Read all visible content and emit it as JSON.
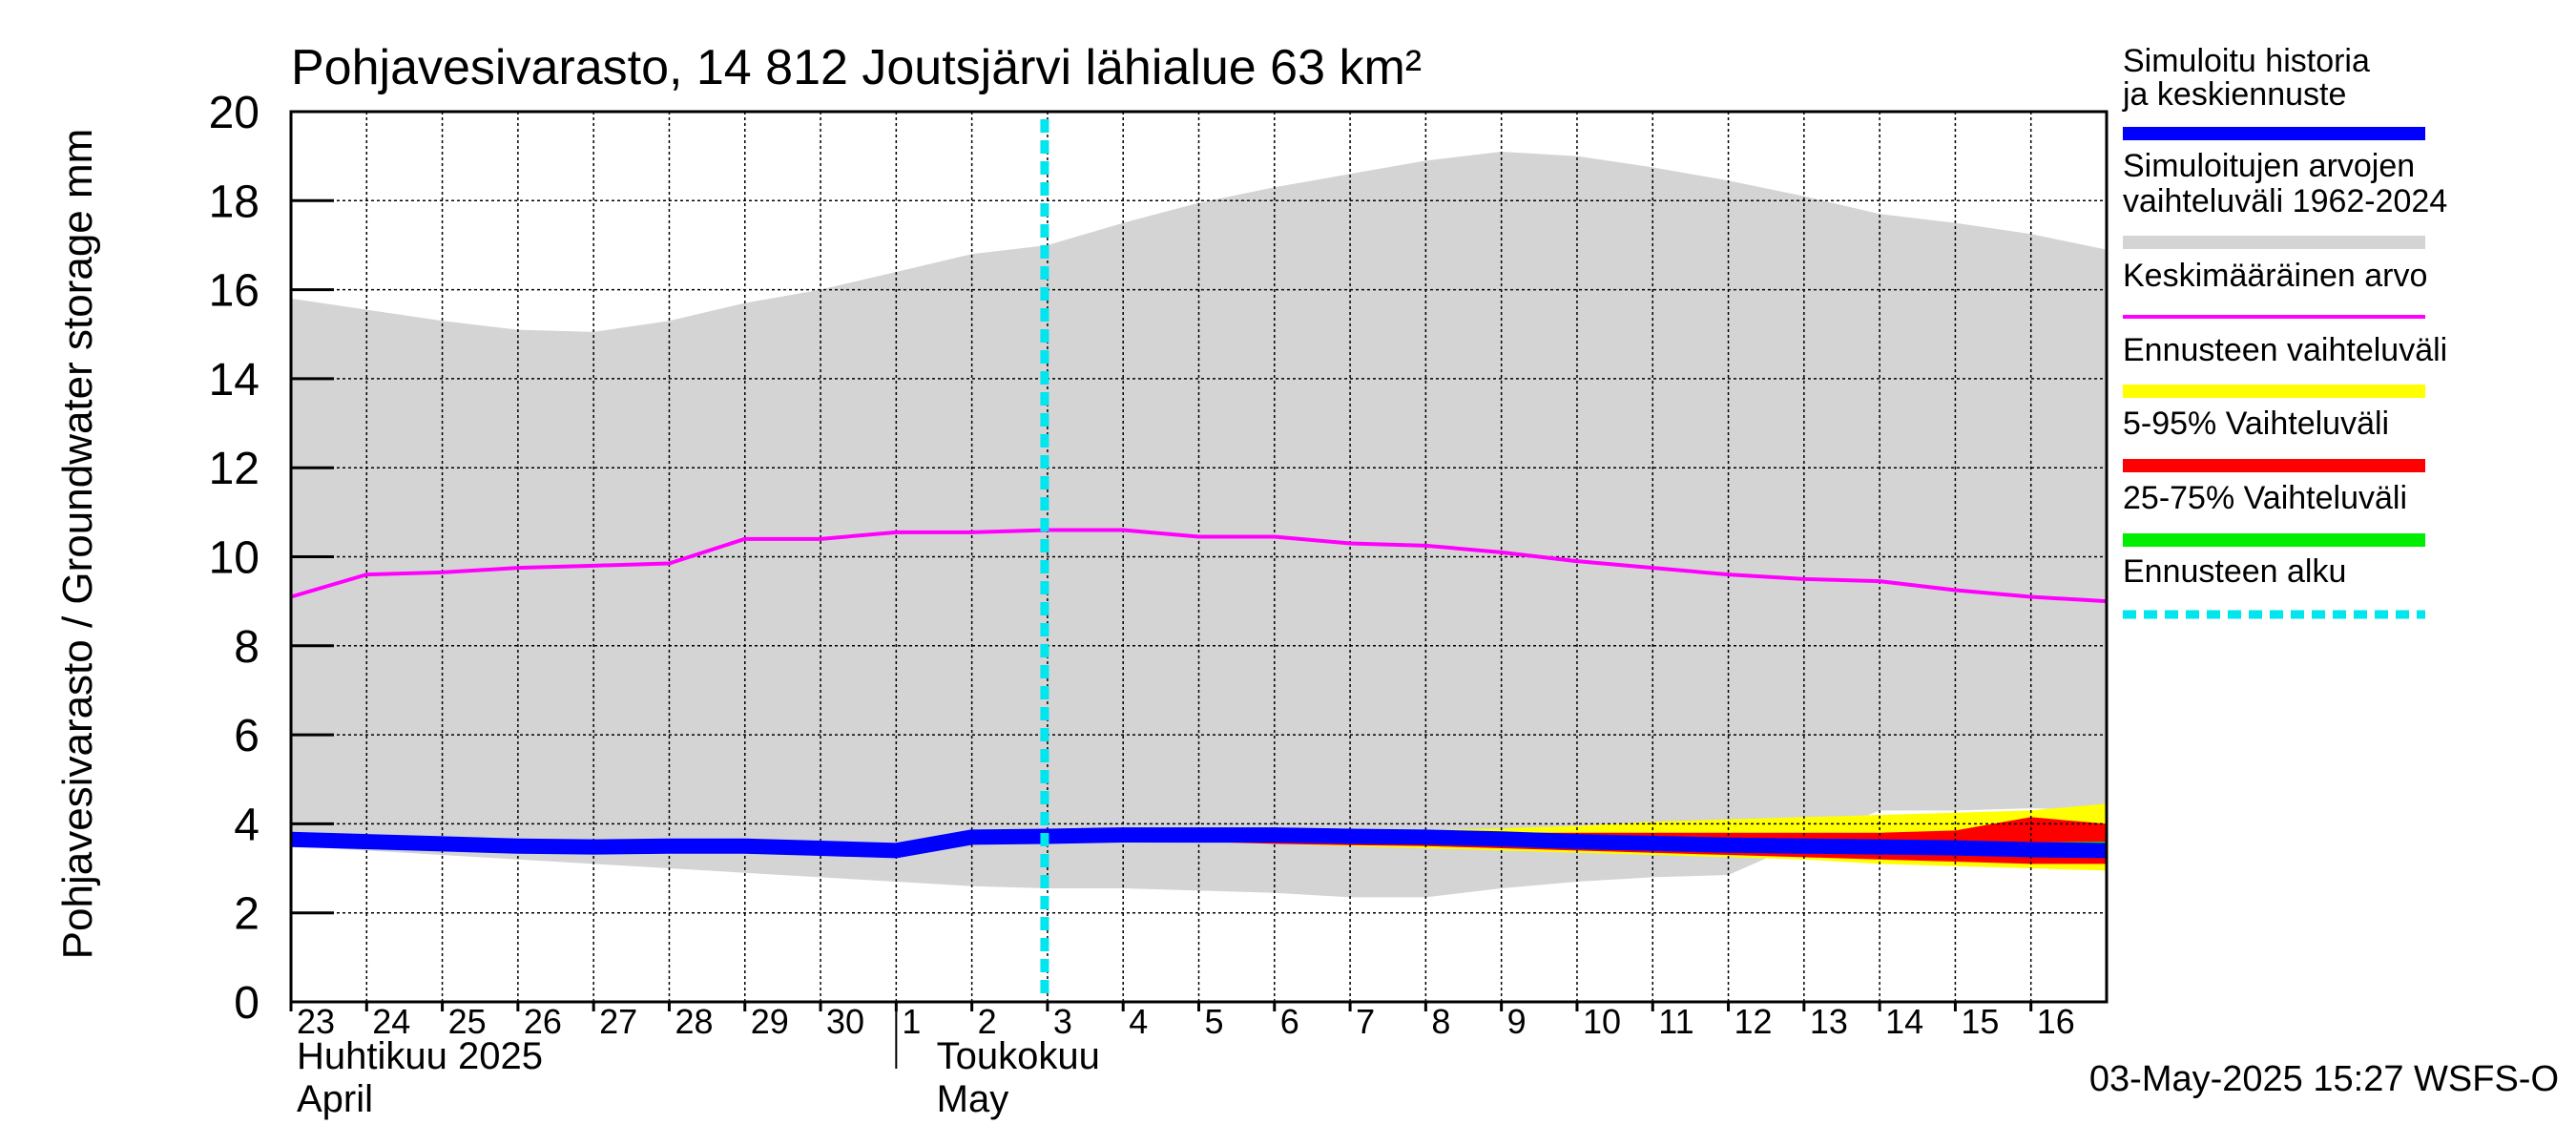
{
  "chart_data": {
    "type": "area",
    "title": "Pohjavesivarasto, 14 812 Joutsjärvi lähialue 63 km²",
    "ylabel": "Pohjavesivarasto / Groundwater storage   mm",
    "ylim": [
      0,
      20
    ],
    "yticks": [
      0,
      2,
      4,
      6,
      8,
      10,
      12,
      14,
      16,
      18,
      20
    ],
    "xlim": [
      0,
      24
    ],
    "grid": true,
    "day_labels": [
      {
        "label": "23",
        "day": 0
      },
      {
        "label": "24",
        "day": 1
      },
      {
        "label": "25",
        "day": 2
      },
      {
        "label": "26",
        "day": 3
      },
      {
        "label": "27",
        "day": 4
      },
      {
        "label": "28",
        "day": 5
      },
      {
        "label": "29",
        "day": 6
      },
      {
        "label": "30",
        "day": 7
      },
      {
        "label": "1",
        "day": 8
      },
      {
        "label": "2",
        "day": 9
      },
      {
        "label": "3",
        "day": 10
      },
      {
        "label": "4",
        "day": 11
      },
      {
        "label": "5",
        "day": 12
      },
      {
        "label": "6",
        "day": 13
      },
      {
        "label": "7",
        "day": 14
      },
      {
        "label": "8",
        "day": 15
      },
      {
        "label": "9",
        "day": 16
      },
      {
        "label": "10",
        "day": 17
      },
      {
        "label": "11",
        "day": 18
      },
      {
        "label": "12",
        "day": 19
      },
      {
        "label": "13",
        "day": 20
      },
      {
        "label": "14",
        "day": 21
      },
      {
        "label": "15",
        "day": 22
      },
      {
        "label": "16",
        "day": 23
      }
    ],
    "month_labels": [
      {
        "fi": "Huhtikuu  2025",
        "en": "April",
        "day": 0
      },
      {
        "fi": "Toukokuu",
        "en": "May",
        "day": 9
      }
    ],
    "month_divider_day": 8,
    "forecast_start_day": 10,
    "series": [
      {
        "name": "Simuloitujen arvojen vaihteluväli 1962-2024",
        "kind": "band",
        "color": "#d4d4d4",
        "x": [
          0,
          1,
          2,
          3,
          4,
          5,
          6,
          7,
          8,
          9,
          10,
          11,
          12,
          13,
          14,
          15,
          16,
          17,
          18,
          19,
          20,
          21,
          22,
          23,
          24
        ],
        "upper": [
          15.8,
          15.55,
          15.3,
          15.1,
          15.05,
          15.3,
          15.7,
          16.0,
          16.4,
          16.8,
          17.0,
          17.5,
          17.95,
          18.3,
          18.6,
          18.9,
          19.1,
          19.0,
          18.75,
          18.45,
          18.1,
          17.7,
          17.5,
          17.25,
          16.9
        ],
        "lower": [
          3.5,
          3.4,
          3.3,
          3.2,
          3.1,
          3.0,
          2.9,
          2.8,
          2.7,
          2.6,
          2.55,
          2.55,
          2.5,
          2.45,
          2.35,
          2.35,
          2.55,
          2.7,
          2.8,
          2.85,
          3.6,
          4.3,
          4.3,
          4.35,
          4.3
        ]
      },
      {
        "name": "Ennusteen vaihteluväli",
        "kind": "band",
        "color": "#ffff00",
        "x": [
          10,
          11,
          12,
          13,
          14,
          15,
          16,
          17,
          18,
          19,
          20,
          21,
          22,
          23,
          24
        ],
        "upper": [
          3.75,
          3.8,
          3.8,
          3.85,
          3.85,
          3.85,
          3.9,
          3.95,
          4.05,
          4.1,
          4.15,
          4.2,
          4.25,
          4.3,
          4.45
        ],
        "lower": [
          3.7,
          3.65,
          3.6,
          3.55,
          3.5,
          3.45,
          3.4,
          3.35,
          3.3,
          3.25,
          3.2,
          3.1,
          3.05,
          3.0,
          2.95
        ]
      },
      {
        "name": "5-95% Vaihteluväli",
        "kind": "band",
        "color": "#ff0000",
        "x": [
          10,
          11,
          12,
          13,
          14,
          15,
          16,
          17,
          18,
          19,
          20,
          21,
          22,
          23,
          24
        ],
        "upper": [
          3.75,
          3.78,
          3.78,
          3.78,
          3.78,
          3.78,
          3.8,
          3.8,
          3.8,
          3.8,
          3.8,
          3.8,
          3.85,
          4.15,
          4.0
        ],
        "lower": [
          3.7,
          3.65,
          3.6,
          3.55,
          3.52,
          3.5,
          3.45,
          3.4,
          3.35,
          3.3,
          3.25,
          3.2,
          3.15,
          3.1,
          3.1
        ]
      },
      {
        "name": "25-75% Vaihteluväli",
        "kind": "band",
        "color": "#00ee00",
        "x": [
          10,
          11,
          12,
          13,
          14,
          15,
          16,
          17,
          18,
          19,
          20,
          21,
          22,
          23,
          24
        ],
        "upper": [
          3.74,
          3.74,
          3.74,
          3.74,
          3.72,
          3.7,
          3.68,
          3.66,
          3.64,
          3.62,
          3.6,
          3.6,
          3.58,
          3.58,
          3.6
        ],
        "lower": [
          3.7,
          3.68,
          3.66,
          3.64,
          3.62,
          3.6,
          3.56,
          3.52,
          3.48,
          3.44,
          3.4,
          3.38,
          3.36,
          3.34,
          3.3
        ]
      },
      {
        "name": "Keskimääräinen arvo",
        "kind": "line",
        "color": "#ff00ff",
        "x": [
          0,
          1,
          2,
          3,
          4,
          5,
          6,
          7,
          8,
          9,
          10,
          11,
          12,
          13,
          14,
          15,
          16,
          17,
          18,
          19,
          20,
          21,
          22,
          23,
          24
        ],
        "values": [
          9.1,
          9.6,
          9.65,
          9.75,
          9.8,
          9.85,
          10.4,
          10.4,
          10.55,
          10.55,
          10.6,
          10.6,
          10.45,
          10.45,
          10.3,
          10.25,
          10.1,
          9.9,
          9.75,
          9.6,
          9.5,
          9.45,
          9.25,
          9.1,
          9.0
        ]
      },
      {
        "name": "Simuloitu historia ja keskiennuste",
        "kind": "line",
        "color": "#0000ff",
        "x": [
          0,
          1,
          2,
          3,
          4,
          5,
          6,
          7,
          8,
          9,
          10,
          11,
          12,
          13,
          14,
          15,
          16,
          17,
          18,
          19,
          20,
          21,
          22,
          23,
          24
        ],
        "values": [
          3.65,
          3.6,
          3.55,
          3.5,
          3.48,
          3.5,
          3.5,
          3.45,
          3.4,
          3.7,
          3.72,
          3.75,
          3.75,
          3.75,
          3.72,
          3.7,
          3.66,
          3.6,
          3.56,
          3.52,
          3.5,
          3.48,
          3.46,
          3.42,
          3.4
        ]
      }
    ],
    "legend": {
      "position": "right",
      "items": [
        {
          "label": "Simuloitu historia ja keskiennuste",
          "color": "#0000ff",
          "style": "thick"
        },
        {
          "label": "Simuloitujen arvojen vaihteluväli 1962-2024",
          "color": "#d4d4d4",
          "style": "thick"
        },
        {
          "label": "Keskimääräinen arvo",
          "color": "#ff00ff",
          "style": "thin"
        },
        {
          "label": "Ennusteen vaihteluväli",
          "color": "#ffff00",
          "style": "thick"
        },
        {
          "label": "5-95% Vaihteluväli",
          "color": "#ff0000",
          "style": "thick"
        },
        {
          "label": "25-75% Vaihteluväli",
          "color": "#00ee00",
          "style": "thick"
        },
        {
          "label": "Ennusteen alku",
          "color": "#00e5ee",
          "style": "dotted"
        }
      ]
    },
    "timestamp": "03-May-2025 15:27 WSFS-O"
  }
}
